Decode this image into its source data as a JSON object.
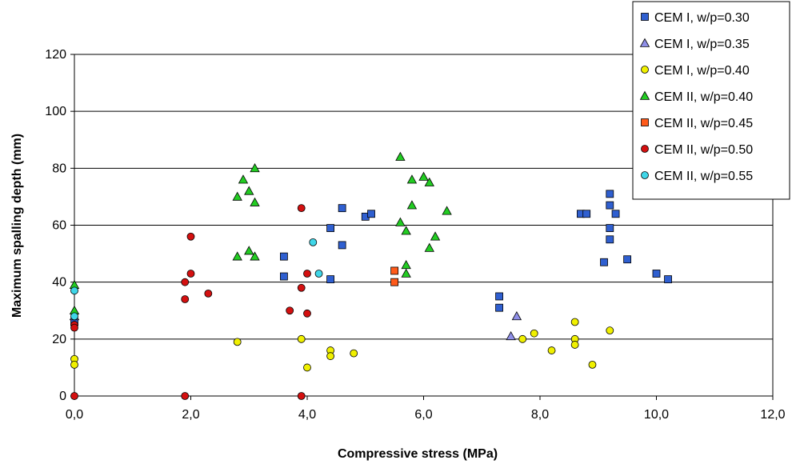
{
  "chart_data": {
    "type": "scatter",
    "xlabel": "Compressive stress (MPa)",
    "ylabel": "Maximum spalling depth (mm)",
    "xlim": [
      0,
      12
    ],
    "ylim": [
      0,
      120
    ],
    "x_ticks": [
      0,
      2,
      4,
      6,
      8,
      10,
      12
    ],
    "x_tick_labels": [
      "0,0",
      "2,0",
      "4,0",
      "6,0",
      "8,0",
      "10,0",
      "12,0"
    ],
    "y_ticks": [
      0,
      20,
      40,
      60,
      80,
      100,
      120
    ],
    "y_tick_labels": [
      "0",
      "20",
      "40",
      "60",
      "80",
      "100",
      "120"
    ],
    "grid": true,
    "legend_position": "top-right",
    "series": [
      {
        "name": "CEM I, w/p=0.30",
        "marker": "square",
        "color": "#2f5fd0",
        "points": [
          [
            0,
            26
          ],
          [
            3.6,
            49
          ],
          [
            3.6,
            42
          ],
          [
            4.4,
            59
          ],
          [
            4.4,
            41
          ],
          [
            4.6,
            66
          ],
          [
            4.6,
            53
          ],
          [
            5.0,
            63
          ],
          [
            5.1,
            64
          ],
          [
            7.3,
            35
          ],
          [
            7.3,
            31
          ],
          [
            8.7,
            64
          ],
          [
            8.8,
            64
          ],
          [
            9.1,
            47
          ],
          [
            9.2,
            71
          ],
          [
            9.2,
            67
          ],
          [
            9.2,
            59
          ],
          [
            9.2,
            55
          ],
          [
            9.3,
            64
          ],
          [
            9.5,
            48
          ],
          [
            10.0,
            43
          ],
          [
            10.2,
            41
          ]
        ]
      },
      {
        "name": "CEM I, w/p=0.35",
        "marker": "triangle",
        "color": "#8f8fe8",
        "points": [
          [
            0,
            28
          ],
          [
            7.5,
            21
          ],
          [
            7.6,
            28
          ]
        ]
      },
      {
        "name": "CEM I, w/p=0.40",
        "marker": "circle",
        "color": "#f0f000",
        "points": [
          [
            0,
            13
          ],
          [
            0,
            11
          ],
          [
            2.8,
            19
          ],
          [
            3.9,
            20
          ],
          [
            4.0,
            10
          ],
          [
            4.4,
            16
          ],
          [
            4.4,
            14
          ],
          [
            4.8,
            15
          ],
          [
            7.7,
            20
          ],
          [
            7.9,
            22
          ],
          [
            8.2,
            16
          ],
          [
            8.6,
            26
          ],
          [
            8.6,
            20
          ],
          [
            8.6,
            18
          ],
          [
            8.9,
            11
          ],
          [
            9.2,
            23
          ]
        ]
      },
      {
        "name": "CEM II, w/p=0.40",
        "marker": "triangle",
        "color": "#22cc22",
        "points": [
          [
            0,
            39
          ],
          [
            0,
            30
          ],
          [
            2.8,
            70
          ],
          [
            2.8,
            49
          ],
          [
            2.9,
            76
          ],
          [
            3.0,
            72
          ],
          [
            3.0,
            51
          ],
          [
            3.1,
            80
          ],
          [
            3.1,
            68
          ],
          [
            3.1,
            49
          ],
          [
            5.6,
            84
          ],
          [
            5.6,
            61
          ],
          [
            5.7,
            58
          ],
          [
            5.7,
            46
          ],
          [
            5.7,
            43
          ],
          [
            5.8,
            76
          ],
          [
            5.8,
            67
          ],
          [
            6.0,
            77
          ],
          [
            6.1,
            75
          ],
          [
            6.1,
            52
          ],
          [
            6.2,
            56
          ],
          [
            6.4,
            65
          ]
        ]
      },
      {
        "name": "CEM II, w/p=0.45",
        "marker": "square",
        "color": "#ff5a1a",
        "points": [
          [
            5.5,
            44
          ],
          [
            5.5,
            40
          ]
        ]
      },
      {
        "name": "CEM II, w/p=0.50",
        "marker": "circle",
        "color": "#d41010",
        "points": [
          [
            0,
            25
          ],
          [
            0,
            24
          ],
          [
            0,
            0
          ],
          [
            1.9,
            40
          ],
          [
            1.9,
            34
          ],
          [
            1.9,
            0
          ],
          [
            2.0,
            56
          ],
          [
            2.0,
            43
          ],
          [
            2.3,
            36
          ],
          [
            3.7,
            30
          ],
          [
            3.9,
            66
          ],
          [
            3.9,
            38
          ],
          [
            3.9,
            0
          ],
          [
            4.0,
            43
          ],
          [
            4.0,
            29
          ]
        ]
      },
      {
        "name": "CEM II, w/p=0.55",
        "marker": "circle",
        "color": "#3fd6e8",
        "points": [
          [
            0,
            37
          ],
          [
            0,
            28
          ],
          [
            4.1,
            54
          ],
          [
            4.2,
            43
          ]
        ]
      }
    ]
  }
}
